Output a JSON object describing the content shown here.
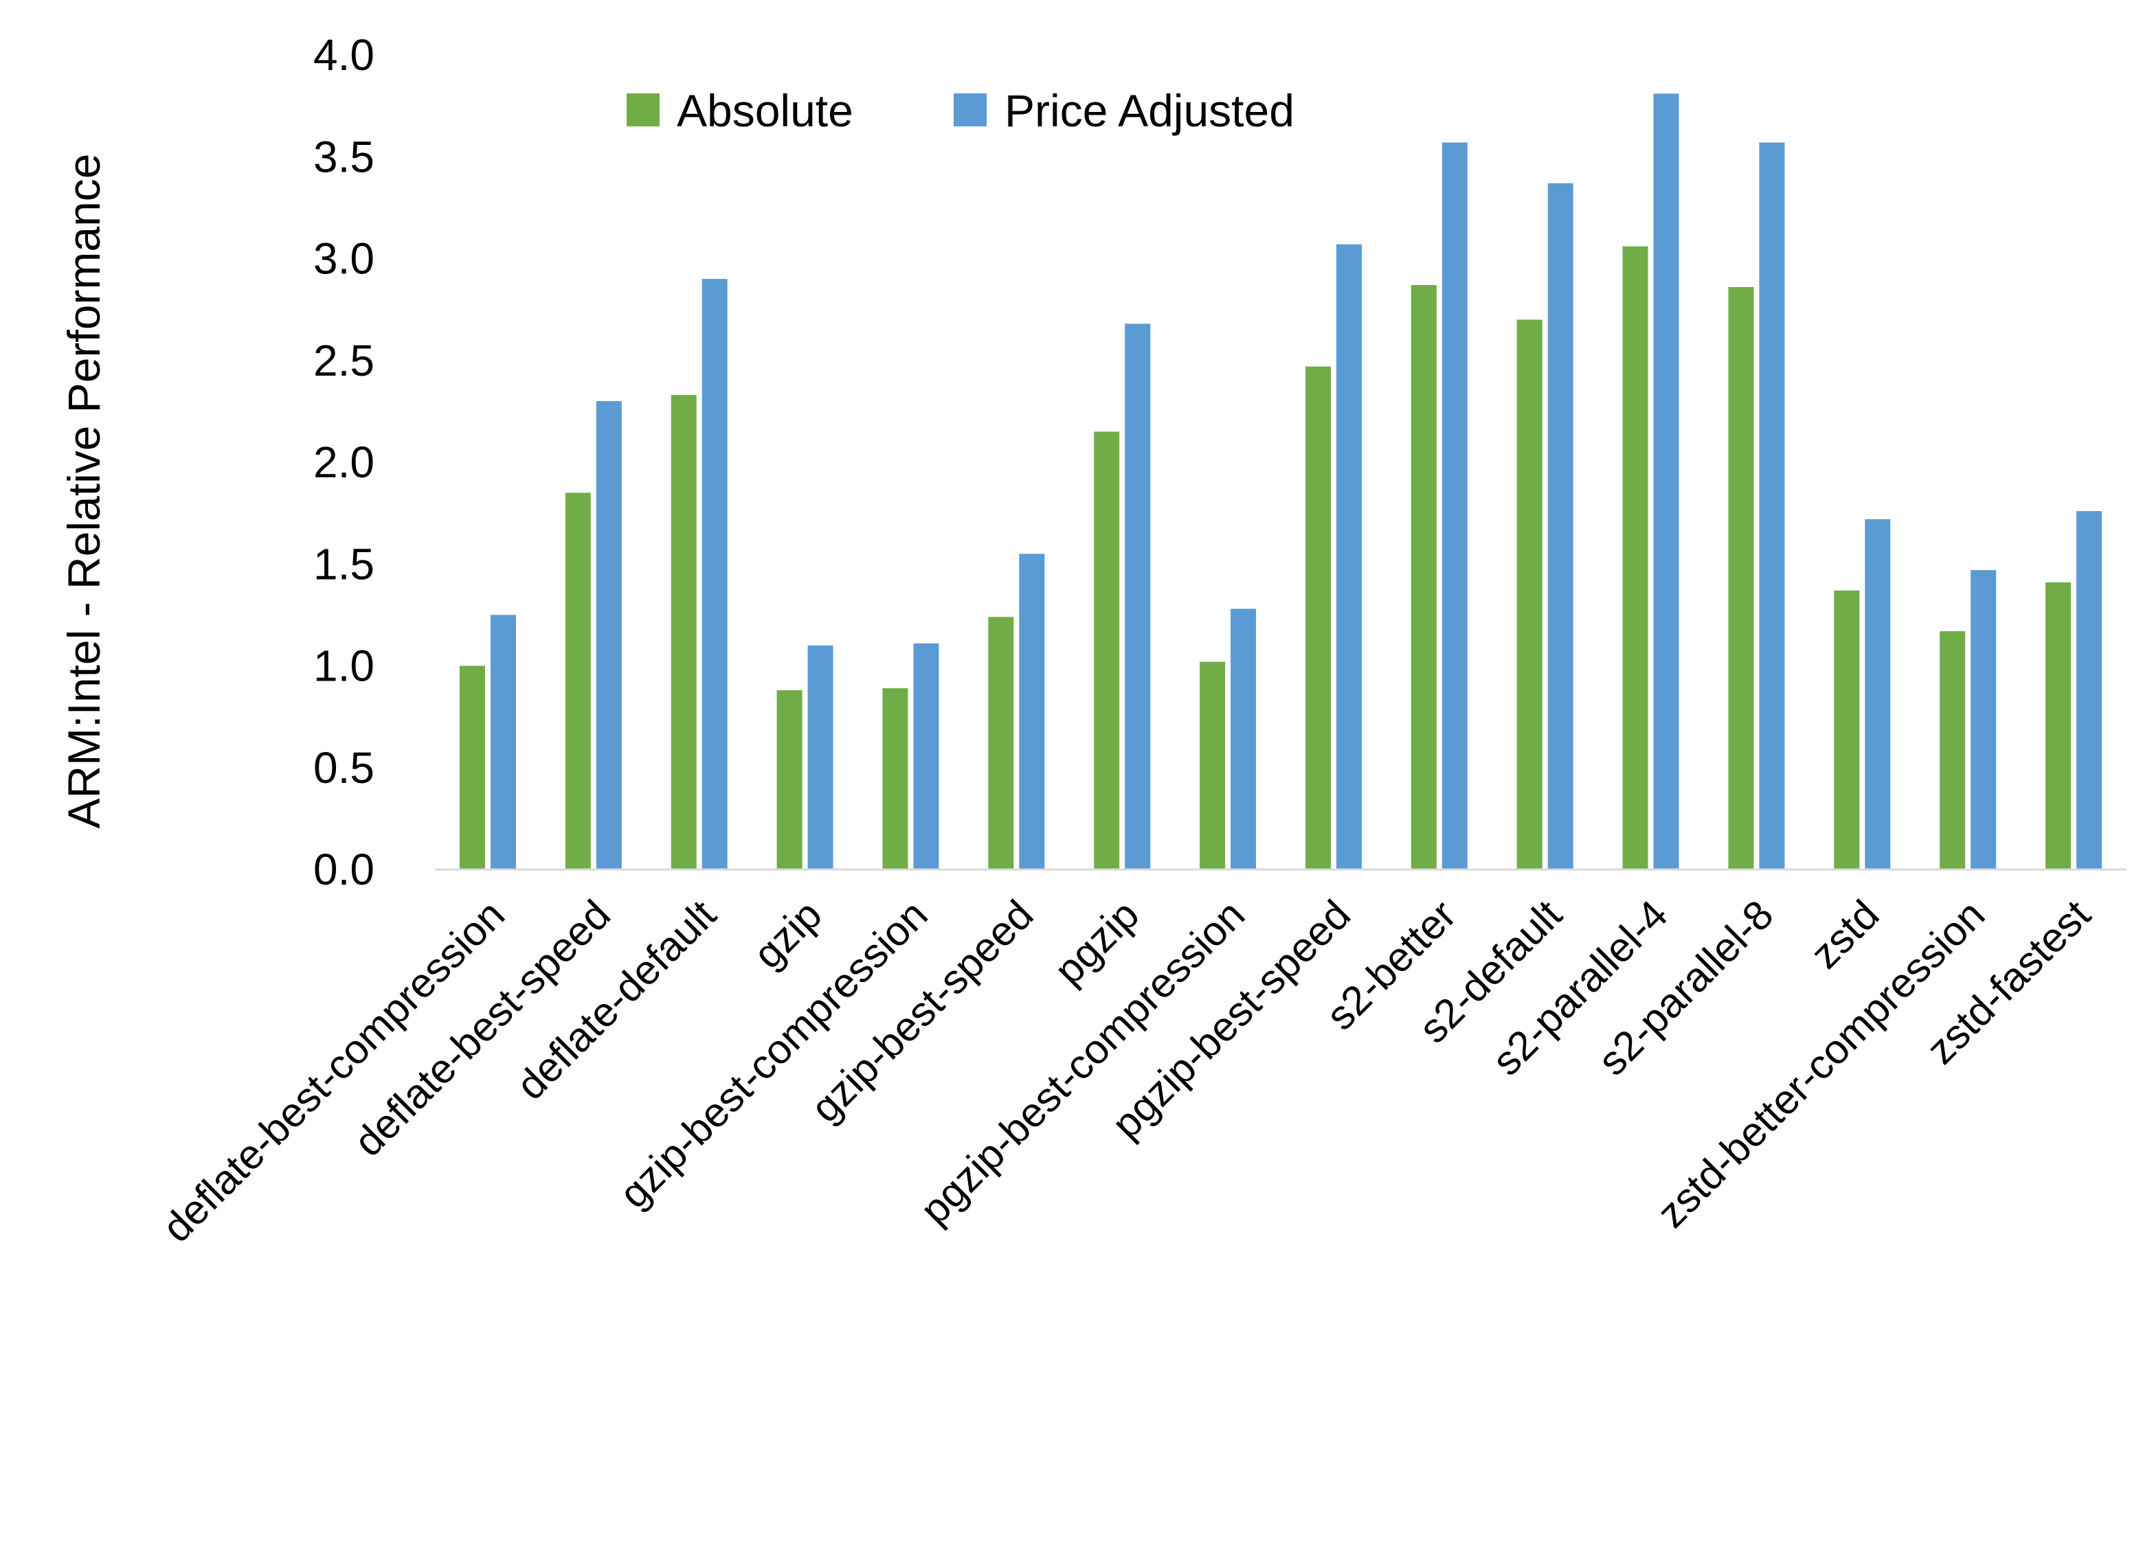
{
  "chart_data": {
    "type": "bar",
    "title": "",
    "xlabel": "",
    "ylabel": "ARM:Intel - Relative Performance",
    "ylim": [
      0,
      4.0
    ],
    "yticks": [
      "0.0",
      "0.5",
      "1.0",
      "1.5",
      "2.0",
      "2.5",
      "3.0",
      "3.5",
      "4.0"
    ],
    "grid": false,
    "legend_placement": "top",
    "categories": [
      "deflate-best-compression",
      "deflate-best-speed",
      "deflate-default",
      "gzip",
      "gzip-best-compression",
      "gzip-best-speed",
      "pgzip",
      "pgzip-best-compression",
      "pgzip-best-speed",
      "s2-better",
      "s2-default",
      "s2-parallel-4",
      "s2-parallel-8",
      "zstd",
      "zstd-better-compression",
      "zstd-fastest"
    ],
    "series": [
      {
        "name": "Absolute",
        "color": "#70AD47",
        "values": [
          1.0,
          1.85,
          2.33,
          0.88,
          0.89,
          1.24,
          2.15,
          1.02,
          2.47,
          2.87,
          2.7,
          3.06,
          2.86,
          1.37,
          1.17,
          1.41
        ]
      },
      {
        "name": "Price Adjusted",
        "color": "#5B9BD5",
        "values": [
          1.25,
          2.3,
          2.9,
          1.1,
          1.11,
          1.55,
          2.68,
          1.28,
          3.07,
          3.57,
          3.37,
          3.81,
          3.57,
          1.72,
          1.47,
          1.76
        ]
      }
    ]
  }
}
